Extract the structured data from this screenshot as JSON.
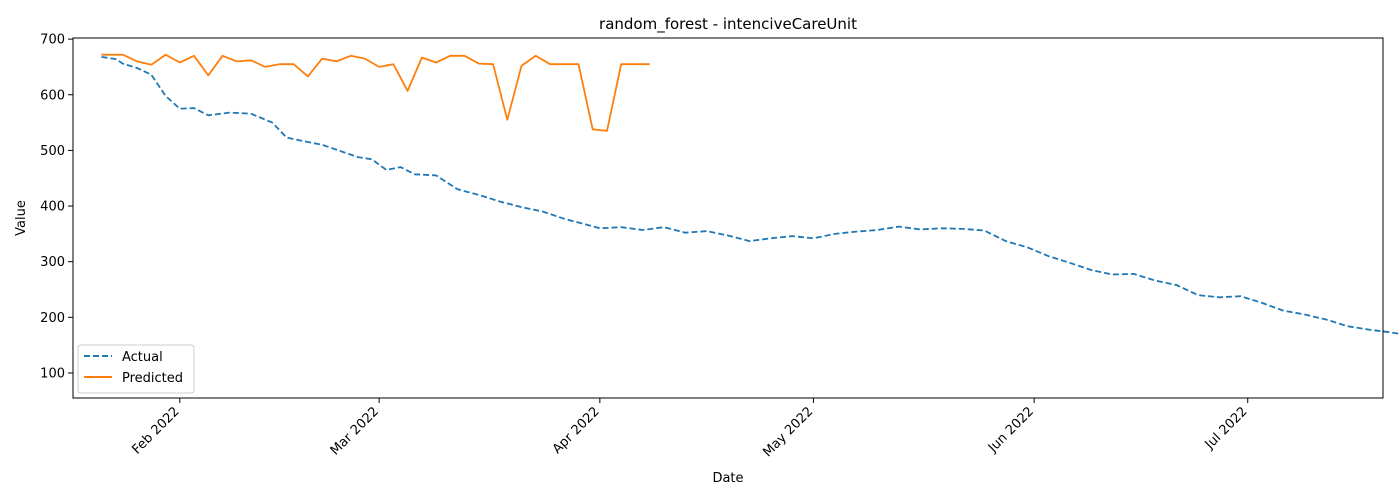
{
  "chart_data": {
    "type": "line",
    "title": "random_forest - intenciveCareUnit",
    "xlabel": "Date",
    "ylabel": "Value",
    "x_ticks": [
      "Feb 2022",
      "Mar 2022",
      "Apr 2022",
      "May 2022",
      "Jun 2022",
      "Jul 2022"
    ],
    "y_ticks": [
      100,
      200,
      300,
      400,
      500,
      600,
      700
    ],
    "xlim": [
      "2022-01-17",
      "2022-07-20"
    ],
    "ylim": [
      55,
      702
    ],
    "legend": "lower-left",
    "grid": false,
    "series": [
      {
        "name": "Actual",
        "color": "#1f77b4",
        "style": "dashed",
        "points": [
          [
            "2022-01-21",
            668
          ],
          [
            "2022-01-23",
            664
          ],
          [
            "2022-01-24",
            656
          ],
          [
            "2022-01-26",
            648
          ],
          [
            "2022-01-28",
            636
          ],
          [
            "2022-01-30",
            598
          ],
          [
            "2022-02-01",
            575
          ],
          [
            "2022-02-03",
            576
          ],
          [
            "2022-02-05",
            563
          ],
          [
            "2022-02-08",
            568
          ],
          [
            "2022-02-11",
            566
          ],
          [
            "2022-02-14",
            550
          ],
          [
            "2022-02-16",
            523
          ],
          [
            "2022-02-19",
            515
          ],
          [
            "2022-02-21",
            510
          ],
          [
            "2022-02-24",
            497
          ],
          [
            "2022-02-26",
            488
          ],
          [
            "2022-02-28",
            484
          ],
          [
            "2022-03-02",
            465
          ],
          [
            "2022-03-04",
            470
          ],
          [
            "2022-03-06",
            457
          ],
          [
            "2022-03-09",
            455
          ],
          [
            "2022-03-12",
            430
          ],
          [
            "2022-03-15",
            420
          ],
          [
            "2022-03-18",
            408
          ],
          [
            "2022-03-21",
            398
          ],
          [
            "2022-03-24",
            390
          ],
          [
            "2022-03-27",
            377
          ],
          [
            "2022-03-30",
            367
          ],
          [
            "2022-04-01",
            360
          ],
          [
            "2022-04-04",
            362
          ],
          [
            "2022-04-07",
            357
          ],
          [
            "2022-04-10",
            362
          ],
          [
            "2022-04-13",
            352
          ],
          [
            "2022-04-16",
            355
          ],
          [
            "2022-04-19",
            347
          ],
          [
            "2022-04-22",
            337
          ],
          [
            "2022-04-25",
            342
          ],
          [
            "2022-04-28",
            346
          ],
          [
            "2022-05-01",
            342
          ],
          [
            "2022-05-04",
            350
          ],
          [
            "2022-05-07",
            354
          ],
          [
            "2022-05-10",
            357
          ],
          [
            "2022-05-13",
            363
          ],
          [
            "2022-05-16",
            358
          ],
          [
            "2022-05-19",
            360
          ],
          [
            "2022-05-22",
            359
          ],
          [
            "2022-05-25",
            356
          ],
          [
            "2022-05-28",
            337
          ],
          [
            "2022-05-31",
            326
          ],
          [
            "2022-06-03",
            310
          ],
          [
            "2022-06-06",
            298
          ],
          [
            "2022-06-09",
            285
          ],
          [
            "2022-06-12",
            277
          ],
          [
            "2022-06-15",
            278
          ],
          [
            "2022-06-18",
            266
          ],
          [
            "2022-06-21",
            258
          ],
          [
            "2022-06-24",
            240
          ],
          [
            "2022-06-27",
            236
          ],
          [
            "2022-06-30",
            238
          ],
          [
            "2022-07-03",
            226
          ],
          [
            "2022-07-06",
            212
          ],
          [
            "2022-07-09",
            205
          ],
          [
            "2022-07-12",
            196
          ],
          [
            "2022-07-15",
            184
          ],
          [
            "2022-07-18",
            178
          ],
          [
            "2022-07-21",
            173
          ],
          [
            "2022-07-24",
            167
          ]
        ]
      },
      {
        "name": "Predicted",
        "color": "#ff7f0e",
        "style": "solid",
        "points": [
          [
            "2022-01-21",
            672
          ],
          [
            "2022-01-24",
            672
          ],
          [
            "2022-01-26",
            660
          ],
          [
            "2022-01-28",
            654
          ],
          [
            "2022-01-30",
            672
          ],
          [
            "2022-02-01",
            658
          ],
          [
            "2022-02-03",
            670
          ],
          [
            "2022-02-05",
            635
          ],
          [
            "2022-02-07",
            670
          ],
          [
            "2022-02-09",
            660
          ],
          [
            "2022-02-11",
            662
          ],
          [
            "2022-02-13",
            650
          ],
          [
            "2022-02-15",
            655
          ],
          [
            "2022-02-17",
            655
          ],
          [
            "2022-02-19",
            633
          ],
          [
            "2022-02-21",
            665
          ],
          [
            "2022-02-23",
            660
          ],
          [
            "2022-02-25",
            670
          ],
          [
            "2022-02-27",
            665
          ],
          [
            "2022-03-01",
            650
          ],
          [
            "2022-03-03",
            655
          ],
          [
            "2022-03-05",
            607
          ],
          [
            "2022-03-07",
            667
          ],
          [
            "2022-03-09",
            658
          ],
          [
            "2022-03-11",
            670
          ],
          [
            "2022-03-13",
            670
          ],
          [
            "2022-03-15",
            656
          ],
          [
            "2022-03-17",
            655
          ],
          [
            "2022-03-19",
            555
          ],
          [
            "2022-03-21",
            652
          ],
          [
            "2022-03-23",
            670
          ],
          [
            "2022-03-25",
            655
          ],
          [
            "2022-03-27",
            655
          ],
          [
            "2022-03-29",
            655
          ],
          [
            "2022-03-31",
            538
          ],
          [
            "2022-04-02",
            535
          ],
          [
            "2022-04-04",
            655
          ],
          [
            "2022-04-06",
            655
          ],
          [
            "2022-04-08",
            655
          ]
        ]
      }
    ]
  }
}
